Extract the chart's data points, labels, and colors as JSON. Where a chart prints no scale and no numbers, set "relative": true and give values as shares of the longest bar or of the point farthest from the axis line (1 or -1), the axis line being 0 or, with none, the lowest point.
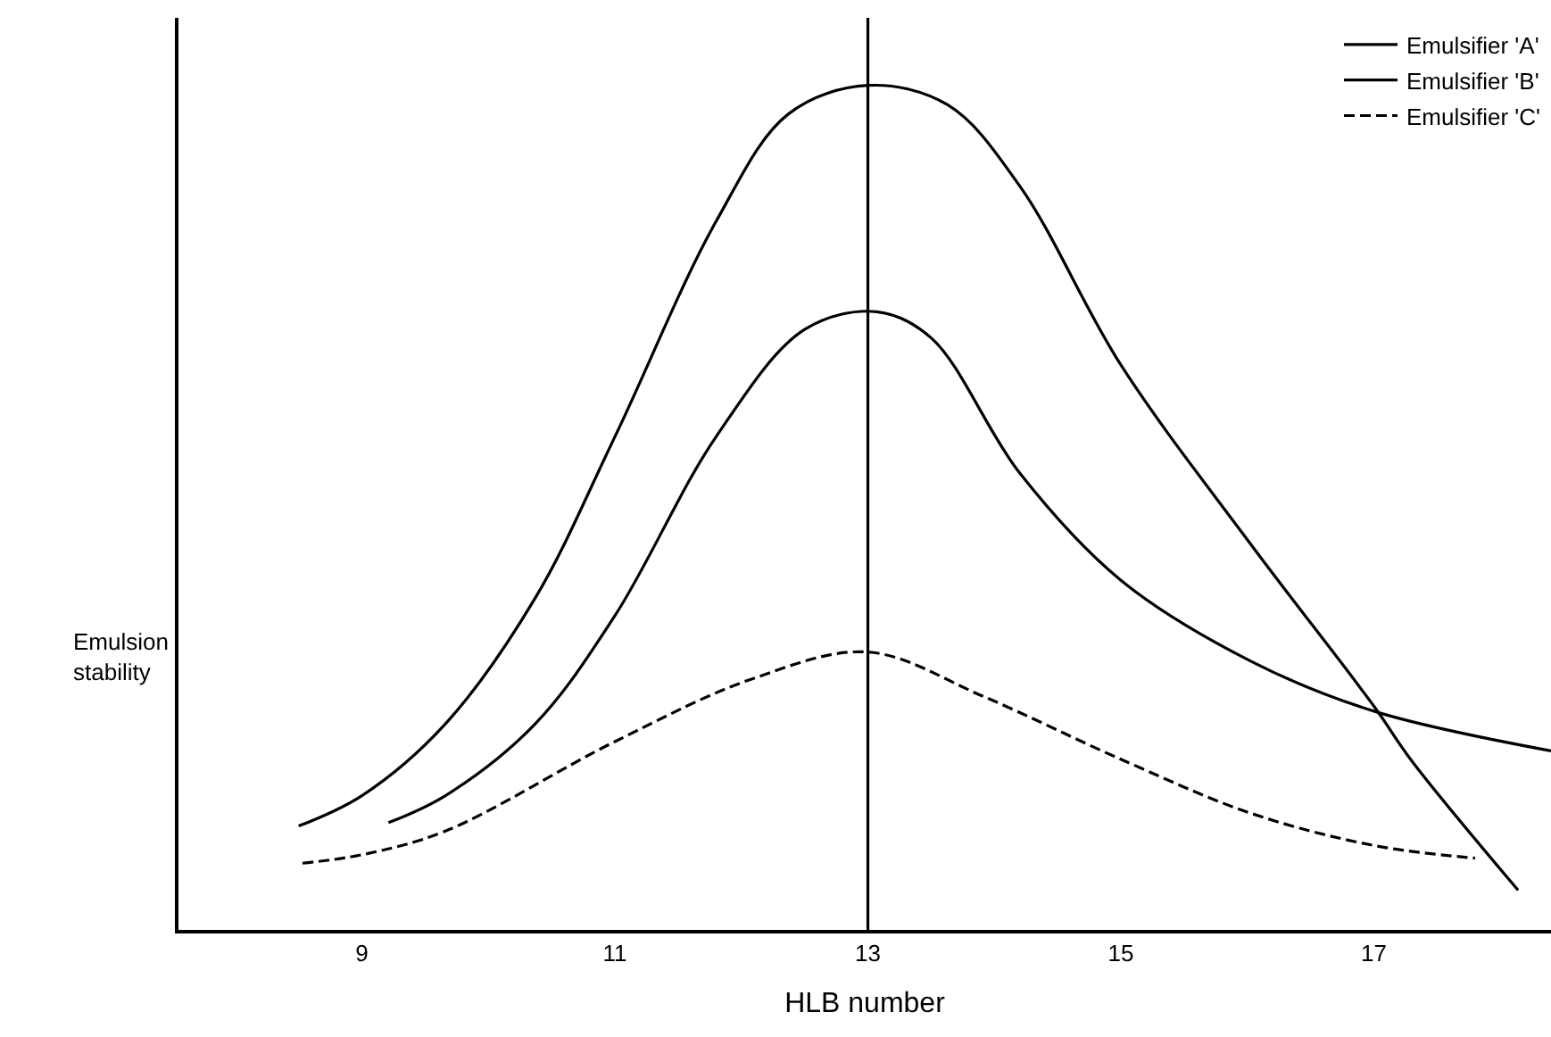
{
  "chart_data": {
    "type": "line",
    "xlabel": "HLB number",
    "ylabel": "Emulsion stability",
    "relative": true,
    "xlim": [
      7.55,
      18.4
    ],
    "xticks": [
      9,
      11,
      13,
      15,
      17
    ],
    "grid": false,
    "legend": "top right",
    "marker": "none",
    "ref_lines": [
      {
        "axis": "x",
        "value": 13,
        "color": "#000000",
        "line_style": "solid"
      }
    ],
    "series": [
      {
        "name": "Emulsifier 'A'",
        "color": "#000000",
        "line_style": "solid",
        "x": [
          8.5,
          9,
          9.66,
          10.37,
          11,
          11.8,
          12.37,
          13,
          13.63,
          14.2,
          15,
          16.03,
          17,
          17.3,
          18.14
        ],
        "values": [
          0.123,
          0.159,
          0.244,
          0.393,
          0.584,
          0.839,
          0.966,
          1.0,
          0.977,
          0.881,
          0.669,
          0.456,
          0.265,
          0.2,
          0.047
        ]
      },
      {
        "name": "Emulsifier 'B'",
        "color": "#000000",
        "line_style": "solid",
        "x": [
          9.21,
          9.66,
          10.37,
          11,
          11.8,
          12.5,
          13.07,
          13.5,
          14.2,
          15,
          16.03,
          17,
          18.4
        ],
        "values": [
          0.127,
          0.159,
          0.244,
          0.372,
          0.584,
          0.711,
          0.732,
          0.701,
          0.541,
          0.414,
          0.318,
          0.259,
          0.212
        ]
      },
      {
        "name": "Emulsifier 'C'",
        "color": "#000000",
        "line_style": "dashed",
        "x": [
          8.53,
          9,
          9.66,
          11,
          12.08,
          13,
          13.92,
          15,
          16.03,
          17,
          17.8
        ],
        "values": [
          0.079,
          0.089,
          0.117,
          0.223,
          0.297,
          0.329,
          0.276,
          0.202,
          0.138,
          0.1,
          0.085
        ]
      }
    ]
  }
}
